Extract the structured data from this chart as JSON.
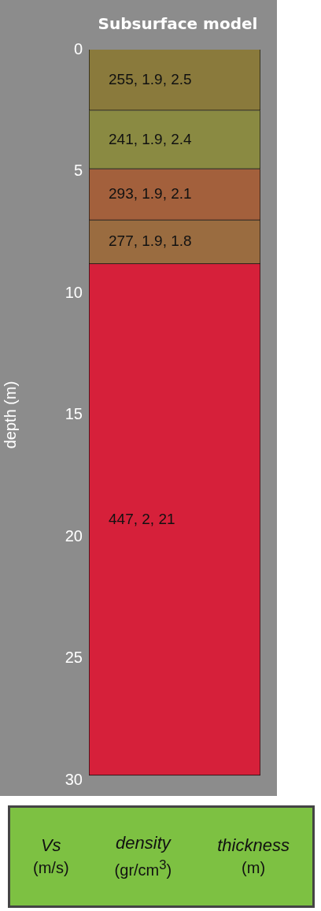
{
  "chart_data": {
    "type": "bar",
    "stacked": true,
    "title": "Subsurface model",
    "ylabel": "depth (m)",
    "categories": [
      null
    ],
    "series": [
      {
        "color": "#8a7a3c",
        "values": [
          2.5
        ],
        "value_labels": [
          "255, 1.9, 2.5"
        ]
      },
      {
        "color": "#8a8a42",
        "values": [
          2.4
        ],
        "value_labels": [
          "241, 1.9, 2.4"
        ]
      },
      {
        "color": "#a3603c",
        "values": [
          2.1
        ],
        "value_labels": [
          "293, 1.9, 2.1"
        ]
      },
      {
        "color": "#9a6c40",
        "values": [
          1.8
        ],
        "value_labels": [
          "277, 1.9, 1.8"
        ]
      },
      {
        "color": "#d6203a",
        "values": [
          21
        ],
        "value_labels": [
          "447, 2, 21"
        ]
      }
    ],
    "ylim": [
      30,
      0
    ],
    "yticks": [
      0,
      5,
      10,
      15,
      20,
      25,
      30
    ],
    "grid": false,
    "legend": false,
    "annotations": [
      "Vs",
      "(m/s)",
      "density",
      "(gr/cm$^{3}$)",
      "thickness",
      "(m)"
    ]
  }
}
